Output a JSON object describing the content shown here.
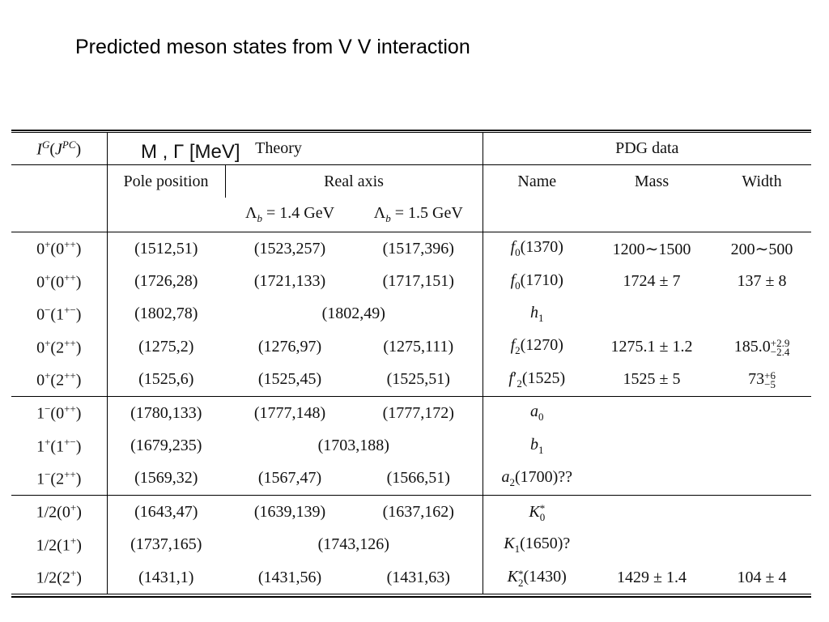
{
  "title": "Predicted meson states from V V interaction",
  "units_label": "M , Γ [MeV]",
  "headers": {
    "quantum_numbers": "I^G(J^PC)",
    "theory": "Theory",
    "pdg": "PDG data",
    "pole": "Pole position",
    "real_axis": "Real axis",
    "name": "Name",
    "mass": "Mass",
    "width": "Width",
    "lambda_14": "Λb = 1.4 GeV",
    "lambda_15": "Λb = 1.5 GeV"
  },
  "rows": [
    {
      "qn": "0+(0++)",
      "pole": "(1512,51)",
      "ra14": "(1523,257)",
      "ra15": "(1517,396)",
      "name": "f0(1370)",
      "mass": "1200∼1500",
      "width": "200∼500"
    },
    {
      "qn": "0+(0++)",
      "pole": "(1726,28)",
      "ra14": "(1721,133)",
      "ra15": "(1717,151)",
      "name": "f0(1710)",
      "mass": "1724 ± 7",
      "width": "137 ± 8"
    },
    {
      "qn": "0−(1+−)",
      "pole": "(1802,78)",
      "ra": "(1802,49)",
      "name": "h1",
      "mass": "",
      "width": ""
    },
    {
      "qn": "0+(2++)",
      "pole": "(1275,2)",
      "ra14": "(1276,97)",
      "ra15": "(1275,111)",
      "name": "f2(1270)",
      "mass": "1275.1 ± 1.2",
      "width": "185.0+2.9−2.4"
    },
    {
      "qn": "0+(2++)",
      "pole": "(1525,6)",
      "ra14": "(1525,45)",
      "ra15": "(1525,51)",
      "name": "f2′(1525)",
      "mass": "1525 ± 5",
      "width": "73+6−5"
    },
    {
      "qn": "1−(0++)",
      "pole": "(1780,133)",
      "ra14": "(1777,148)",
      "ra15": "(1777,172)",
      "name": "a0",
      "mass": "",
      "width": ""
    },
    {
      "qn": "1+(1+−)",
      "pole": "(1679,235)",
      "ra": "(1703,188)",
      "name": "b1",
      "mass": "",
      "width": ""
    },
    {
      "qn": "1−(2++)",
      "pole": "(1569,32)",
      "ra14": "(1567,47)",
      "ra15": "(1566,51)",
      "name": "a2(1700)??",
      "mass": "",
      "width": ""
    },
    {
      "qn": "1/2(0+)",
      "pole": "(1643,47)",
      "ra14": "(1639,139)",
      "ra15": "(1637,162)",
      "name": "K0*",
      "mass": "",
      "width": ""
    },
    {
      "qn": "1/2(1+)",
      "pole": "(1737,165)",
      "ra": "(1743,126)",
      "name": "K1(1650)?",
      "mass": "",
      "width": ""
    },
    {
      "qn": "1/2(2+)",
      "pole": "(1431,1)",
      "ra14": "(1431,56)",
      "ra15": "(1431,63)",
      "name": "K2*(1430)",
      "mass": "1429 ± 1.4",
      "width": "104 ± 4"
    }
  ]
}
